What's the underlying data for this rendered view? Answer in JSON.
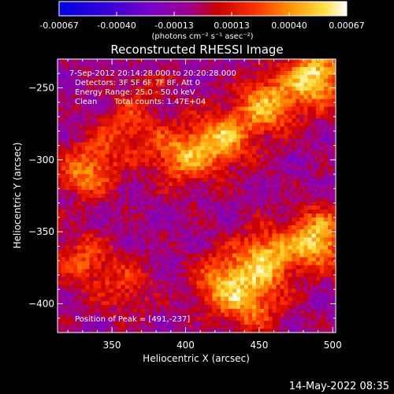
{
  "chart_data": {
    "type": "heatmap",
    "title": "Reconstructed RHESSI Image",
    "xlabel": "Heliocentric X (arcsec)",
    "ylabel": "Heliocentric Y (arcsec)",
    "xlim": [
      313,
      502
    ],
    "ylim": [
      -420,
      -230
    ],
    "xticks": [
      350,
      400,
      450,
      500
    ],
    "yticks": [
      -250,
      -300,
      -350,
      -400
    ],
    "colorbar": {
      "ticks": [
        "-0.00067",
        "-0.00040",
        "-0.00013",
        "0.00013",
        "0.00040",
        "0.00067"
      ],
      "range": [
        -0.00067,
        0.00067
      ],
      "unit_label": "(photons cm⁻² s⁻¹ asec⁻²)"
    },
    "annotations": {
      "time_range": "7-Sep-2012 20:14:28.000 to 20:20:28.000",
      "detectors": "Detectors: 3F 5F 6F 7F 8F, Att 0",
      "energy": "Energy Range: 25.0 - 50.0 keV",
      "method": "Clean",
      "counts": "Total counts: 1.47E+04",
      "peak": "Position of Peak = [491,-237]"
    },
    "peak_position": [
      491,
      -237
    ],
    "sources": [
      {
        "x": 488,
        "y": -243,
        "peak": 0.00067
      },
      {
        "x": 455,
        "y": -262,
        "peak": 0.00052
      },
      {
        "x": 425,
        "y": -285,
        "peak": 0.0005
      },
      {
        "x": 400,
        "y": -298,
        "peak": 0.00045
      },
      {
        "x": 490,
        "y": -355,
        "peak": 0.00062
      },
      {
        "x": 455,
        "y": -368,
        "peak": 0.00055
      },
      {
        "x": 425,
        "y": -385,
        "peak": 0.00045
      },
      {
        "x": 445,
        "y": -400,
        "peak": 0.0004
      },
      {
        "x": 335,
        "y": -310,
        "peak": 0.0003
      },
      {
        "x": 330,
        "y": -370,
        "peak": 0.00032
      },
      {
        "x": 360,
        "y": -388,
        "peak": 0.00025
      },
      {
        "x": 370,
        "y": -285,
        "peak": 0.00022
      }
    ]
  },
  "footer": {
    "timestamp": "14-May-2022 08:35"
  }
}
